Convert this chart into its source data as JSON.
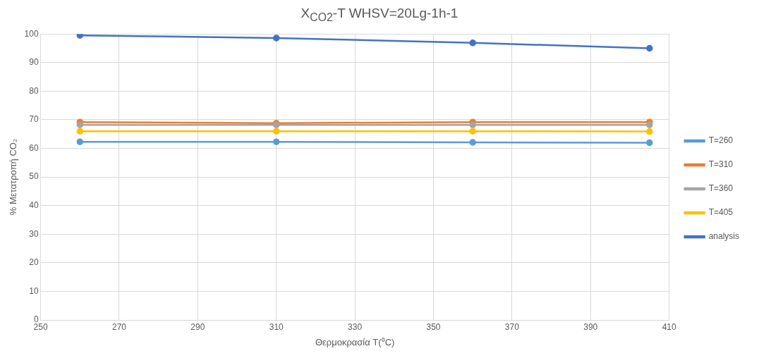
{
  "chart_data": {
    "type": "line",
    "title": "X$_{CO2}$-T WHSV=20Lg-1h-1",
    "xlabel": "Θερμοκρασία T(⁰C)",
    "ylabel": "% Μετατροπή CO₂",
    "x": [
      260,
      310,
      360,
      405
    ],
    "series": [
      {
        "name": "T=260",
        "color": "#5b9bd5",
        "values": [
          62.3,
          62.3,
          62.1,
          62
        ]
      },
      {
        "name": "T=310",
        "color": "#ed7d31",
        "values": [
          69.2,
          68.8,
          69.2,
          69.2
        ]
      },
      {
        "name": "T=360",
        "color": "#a5a5a5",
        "values": [
          68.2,
          68.2,
          68.2,
          68.2
        ]
      },
      {
        "name": "T=405",
        "color": "#ffc000",
        "values": [
          66,
          66,
          66,
          65.9
        ]
      },
      {
        "name": "analysis",
        "color": "#4472c4",
        "values": [
          99.5,
          98.6,
          96.9,
          95
        ]
      }
    ],
    "xlim": [
      250,
      410
    ],
    "xticks": [
      250,
      270,
      290,
      310,
      330,
      350,
      370,
      390,
      410
    ],
    "ylim": [
      0,
      100
    ],
    "yticks": [
      0,
      10,
      20,
      30,
      40,
      50,
      60,
      70,
      80,
      90,
      100
    ],
    "grid": true,
    "legend": "right",
    "marker": "circle",
    "line_style": "solid"
  }
}
